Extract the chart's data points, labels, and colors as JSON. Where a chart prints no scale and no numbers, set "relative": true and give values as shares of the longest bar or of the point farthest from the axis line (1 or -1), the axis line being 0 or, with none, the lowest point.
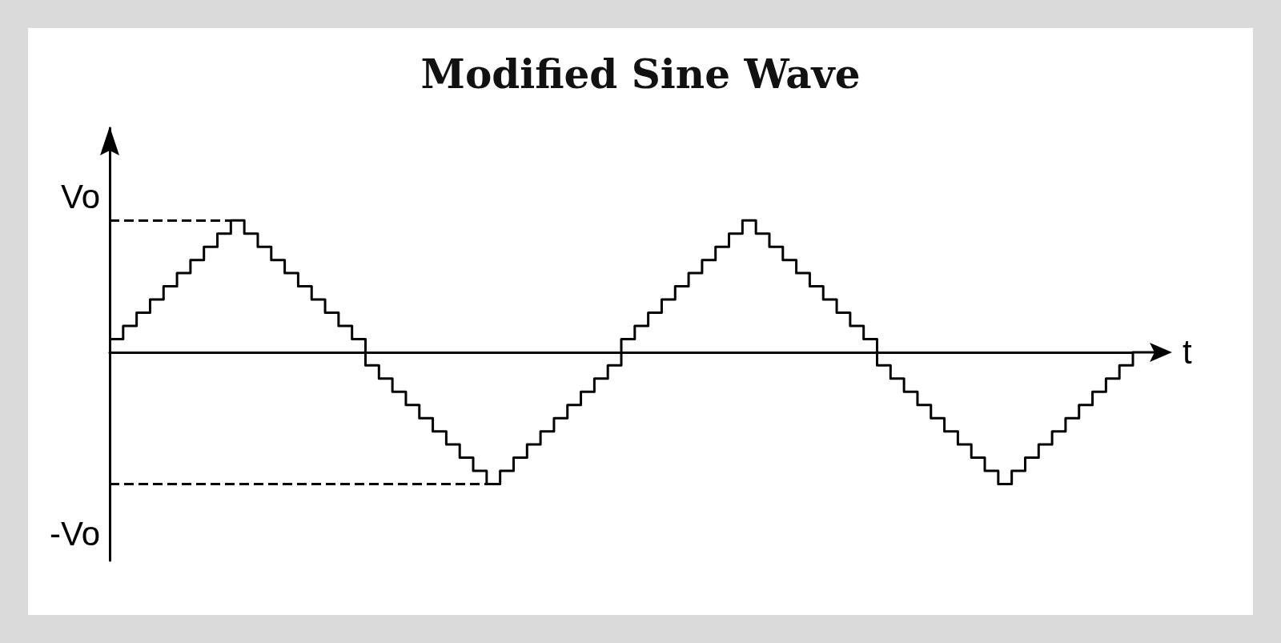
{
  "chart_data": {
    "type": "step",
    "title": "Modified Sine Wave",
    "xlabel": "t",
    "relative": true,
    "marker": "none",
    "line_style": "solid",
    "grid": false,
    "categories": [
      null,
      null,
      null,
      null,
      null,
      null,
      null,
      null,
      null,
      null,
      null,
      null,
      null,
      null,
      null,
      null,
      null,
      null,
      null,
      null,
      null,
      null,
      null,
      null,
      null,
      null,
      null,
      null,
      null,
      null,
      null,
      null,
      null,
      null,
      null,
      null,
      null,
      null,
      null,
      null,
      null,
      null,
      null,
      null,
      null,
      null,
      null,
      null,
      null,
      null,
      null,
      null,
      null,
      null,
      null,
      null,
      null,
      null,
      null,
      null,
      null,
      null,
      null,
      null,
      null,
      null,
      null,
      null,
      null,
      null,
      null,
      null,
      null,
      null,
      null,
      null,
      null
    ],
    "series": [
      {
        "color": "#000000",
        "values": [
          0.1,
          0.2,
          0.3,
          0.4,
          0.5,
          0.6,
          0.7,
          0.8,
          0.9,
          1,
          0.9,
          0.8,
          0.7,
          0.6,
          0.5,
          0.4,
          0.3,
          0.2,
          0.1,
          -0.1,
          -0.2,
          -0.3,
          -0.4,
          -0.5,
          -0.6,
          -0.7,
          -0.8,
          -0.9,
          -1,
          -0.9,
          -0.8,
          -0.7,
          -0.6,
          -0.5,
          -0.4,
          -0.3,
          -0.2,
          -0.1,
          0.1,
          0.2,
          0.3,
          0.4,
          0.5,
          0.6,
          0.7,
          0.8,
          0.9,
          1,
          0.9,
          0.8,
          0.7,
          0.6,
          0.5,
          0.4,
          0.3,
          0.2,
          0.1,
          -0.1,
          -0.2,
          -0.3,
          -0.4,
          -0.5,
          -0.6,
          -0.7,
          -0.8,
          -0.9,
          -1,
          -0.9,
          -0.8,
          -0.7,
          -0.6,
          -0.5,
          -0.4,
          -0.3,
          -0.2,
          -0.1,
          0
        ]
      }
    ],
    "ref_lines": [
      {
        "axis": "y",
        "value": 1,
        "label": "Vo",
        "line_style": "dashed",
        "color": "#000000"
      },
      {
        "axis": "y",
        "value": -1,
        "label": "-Vo",
        "line_style": "dashed",
        "color": "#000000"
      }
    ]
  }
}
